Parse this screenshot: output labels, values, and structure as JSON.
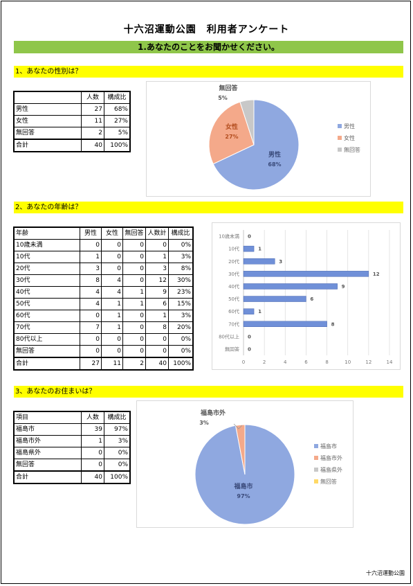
{
  "title": "十六沼運動公園　利用者アンケート",
  "banner": "1.あなたのことをお聞かせください。",
  "footer": "十六沼運動公園",
  "q1": {
    "heading": "1、あなたの性別は？",
    "headers": [
      "",
      "人数",
      "構成比"
    ],
    "rows": [
      {
        "label": "男性",
        "count": "27",
        "ratio": "68%"
      },
      {
        "label": "女性",
        "count": "11",
        "ratio": "27%"
      },
      {
        "label": "無回答",
        "count": "2",
        "ratio": "5%"
      },
      {
        "label": "合計",
        "count": "40",
        "ratio": "100%"
      }
    ]
  },
  "q2": {
    "heading": "2、あなたの年齢は？",
    "headers": [
      "年齢",
      "男性",
      "女性",
      "無回答",
      "人数計",
      "構成比"
    ],
    "rows": [
      {
        "label": "10歳未満",
        "m": "0",
        "f": "0",
        "n": "0",
        "t": "0",
        "r": "0%"
      },
      {
        "label": "10代",
        "m": "1",
        "f": "0",
        "n": "0",
        "t": "1",
        "r": "3%"
      },
      {
        "label": "20代",
        "m": "3",
        "f": "0",
        "n": "0",
        "t": "3",
        "r": "8%"
      },
      {
        "label": "30代",
        "m": "8",
        "f": "4",
        "n": "0",
        "t": "12",
        "r": "30%"
      },
      {
        "label": "40代",
        "m": "4",
        "f": "4",
        "n": "1",
        "t": "9",
        "r": "23%"
      },
      {
        "label": "50代",
        "m": "4",
        "f": "1",
        "n": "1",
        "t": "6",
        "r": "15%"
      },
      {
        "label": "60代",
        "m": "0",
        "f": "1",
        "n": "0",
        "t": "1",
        "r": "3%"
      },
      {
        "label": "70代",
        "m": "7",
        "f": "1",
        "n": "0",
        "t": "8",
        "r": "20%"
      },
      {
        "label": "80代以上",
        "m": "0",
        "f": "0",
        "n": "0",
        "t": "0",
        "r": "0%"
      },
      {
        "label": "無回答",
        "m": "0",
        "f": "0",
        "n": "0",
        "t": "0",
        "r": "0%"
      },
      {
        "label": "合計",
        "m": "27",
        "f": "11",
        "n": "2",
        "t": "40",
        "r": "100%"
      }
    ]
  },
  "q3": {
    "heading": "3、あなたのお住まいは？",
    "headers": [
      "項目",
      "人数",
      "構成比"
    ],
    "rows": [
      {
        "label": "福島市",
        "count": "39",
        "ratio": "97%"
      },
      {
        "label": "福島市外",
        "count": "1",
        "ratio": "3%"
      },
      {
        "label": "福島県外",
        "count": "0",
        "ratio": "0%"
      },
      {
        "label": "無回答",
        "count": "0",
        "ratio": "0%"
      },
      {
        "label": "合計",
        "count": "40",
        "ratio": "100%"
      }
    ]
  },
  "chart_data": [
    {
      "type": "pie",
      "categories": [
        "男性",
        "女性",
        "無回答"
      ],
      "values": [
        68,
        27,
        5
      ],
      "slice_labels": [
        {
          "name": "男性",
          "pct": "68%"
        },
        {
          "name": "女性",
          "pct": "27%"
        },
        {
          "name": "無回答",
          "pct": "5%"
        }
      ],
      "colors": [
        "#8fa8e0",
        "#f4a98a",
        "#c8c8c8"
      ],
      "legend": "right"
    },
    {
      "type": "bar",
      "orientation": "horizontal",
      "categories": [
        "10歳未満",
        "10代",
        "20代",
        "30代",
        "40代",
        "50代",
        "60代",
        "70代",
        "80代以上",
        "無回答"
      ],
      "values": [
        0,
        1,
        3,
        12,
        9,
        6,
        1,
        8,
        0,
        0
      ],
      "xlim": [
        0,
        14
      ],
      "xticks": [
        "0",
        "2",
        "4",
        "6",
        "8",
        "10",
        "12",
        "14"
      ],
      "color": "#7090d8"
    },
    {
      "type": "pie",
      "categories": [
        "福島市",
        "福島市外",
        "福島県外",
        "無回答"
      ],
      "values": [
        97,
        3,
        0,
        0
      ],
      "slice_labels": [
        {
          "name": "福島市",
          "pct": "97%"
        },
        {
          "name": "福島市外",
          "pct": "3%"
        }
      ],
      "colors": [
        "#8fa8e0",
        "#f4a98a",
        "#c8c8c8",
        "#ffd966"
      ],
      "legend": "right"
    }
  ]
}
